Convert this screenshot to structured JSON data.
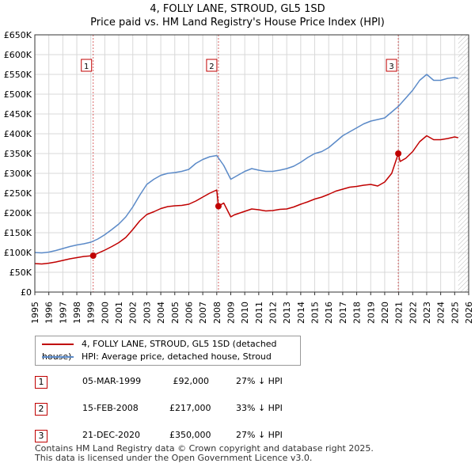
{
  "chart_data": {
    "type": "line",
    "title": "4, FOLLY LANE, STROUD, GL5 1SD",
    "subtitle": "Price paid vs. HM Land Registry's House Price Index (HPI)",
    "xlabel": "",
    "ylabel": "",
    "xlim": [
      1995,
      2026
    ],
    "ylim": [
      0,
      650000
    ],
    "y_ticks": [
      0,
      50000,
      100000,
      150000,
      200000,
      250000,
      300000,
      350000,
      400000,
      450000,
      500000,
      550000,
      600000,
      650000
    ],
    "y_tick_labels": [
      "£0",
      "£50K",
      "£100K",
      "£150K",
      "£200K",
      "£250K",
      "£300K",
      "£350K",
      "£400K",
      "£450K",
      "£500K",
      "£550K",
      "£600K",
      "£650K"
    ],
    "x_ticks": [
      1995,
      1996,
      1997,
      1998,
      1999,
      2000,
      2001,
      2002,
      2003,
      2004,
      2005,
      2006,
      2007,
      2008,
      2009,
      2010,
      2011,
      2012,
      2013,
      2014,
      2015,
      2016,
      2017,
      2018,
      2019,
      2020,
      2021,
      2022,
      2023,
      2024,
      2025,
      2026
    ],
    "grid": true,
    "forecast_start": 2025.25,
    "series": [
      {
        "name": "4, FOLLY LANE, STROUD, GL5 1SD (detached house)",
        "color": "#c00000",
        "x": [
          1995,
          1995.5,
          1996,
          1996.5,
          1997,
          1997.5,
          1998,
          1998.5,
          1999.17,
          1999.5,
          2000,
          2000.5,
          2001,
          2001.5,
          2002,
          2002.5,
          2003,
          2003.5,
          2004,
          2004.5,
          2005,
          2005.5,
          2006,
          2006.5,
          2007,
          2007.5,
          2008.0,
          2008.12,
          2008.5,
          2009,
          2009.25,
          2009.5,
          2010,
          2010.5,
          2011,
          2011.5,
          2012,
          2012.5,
          2013,
          2013.5,
          2014,
          2014.5,
          2015,
          2015.5,
          2016,
          2016.5,
          2017,
          2017.5,
          2018,
          2018.5,
          2019,
          2019.5,
          2020,
          2020.5,
          2020.97,
          2021.1,
          2021.5,
          2022,
          2022.5,
          2023,
          2023.5,
          2024,
          2024.5,
          2025,
          2025.25
        ],
        "values": [
          72000,
          71000,
          73000,
          76000,
          80000,
          84000,
          87000,
          90000,
          92000,
          98000,
          106000,
          115000,
          125000,
          138000,
          158000,
          180000,
          196000,
          203000,
          211000,
          216000,
          218000,
          219000,
          222000,
          230000,
          240000,
          250000,
          258000,
          217000,
          225000,
          190000,
          195000,
          198000,
          204000,
          210000,
          208000,
          205000,
          206000,
          209000,
          210000,
          215000,
          222000,
          228000,
          235000,
          240000,
          247000,
          255000,
          260000,
          265000,
          267000,
          270000,
          272000,
          268000,
          278000,
          300000,
          350000,
          330000,
          338000,
          355000,
          380000,
          395000,
          385000,
          385000,
          388000,
          392000,
          390000
        ]
      },
      {
        "name": "HPI: Average price, detached house, Stroud",
        "color": "#5b8ac8",
        "x": [
          1995,
          1995.5,
          1996,
          1996.5,
          1997,
          1997.5,
          1998,
          1998.5,
          1999,
          1999.5,
          2000,
          2000.5,
          2001,
          2001.5,
          2002,
          2002.5,
          2003,
          2003.5,
          2004,
          2004.5,
          2005,
          2005.5,
          2006,
          2006.5,
          2007,
          2007.5,
          2008,
          2008.5,
          2009,
          2009.25,
          2009.5,
          2010,
          2010.5,
          2011,
          2011.5,
          2012,
          2012.5,
          2013,
          2013.5,
          2014,
          2014.5,
          2015,
          2015.5,
          2016,
          2016.5,
          2017,
          2017.5,
          2018,
          2018.5,
          2019,
          2019.5,
          2020,
          2020.5,
          2021,
          2021.5,
          2022,
          2022.5,
          2023,
          2023.5,
          2024,
          2024.5,
          2025,
          2025.25
        ],
        "values": [
          100000,
          99000,
          101000,
          105000,
          110000,
          115000,
          119000,
          122000,
          126000,
          134000,
          145000,
          158000,
          172000,
          190000,
          215000,
          245000,
          272000,
          285000,
          295000,
          300000,
          302000,
          305000,
          310000,
          325000,
          335000,
          342000,
          345000,
          320000,
          285000,
          290000,
          295000,
          305000,
          312000,
          308000,
          305000,
          305000,
          308000,
          312000,
          318000,
          328000,
          340000,
          350000,
          355000,
          365000,
          380000,
          395000,
          405000,
          415000,
          425000,
          432000,
          436000,
          440000,
          455000,
          470000,
          490000,
          510000,
          535000,
          550000,
          535000,
          535000,
          540000,
          542000,
          540000
        ]
      }
    ],
    "sales": [
      {
        "num": "1",
        "x": 1999.17,
        "value": 92000
      },
      {
        "num": "2",
        "x": 2008.12,
        "value": 217000
      },
      {
        "num": "3",
        "x": 2020.97,
        "value": 350000
      }
    ]
  },
  "legend": {
    "property_label": "4, FOLLY LANE, STROUD, GL5 1SD (detached house)",
    "hpi_label": "HPI: Average price, detached house, Stroud"
  },
  "sales_table": [
    {
      "num": "1",
      "date": "05-MAR-1999",
      "price": "£92,000",
      "hpi": "27% ↓ HPI"
    },
    {
      "num": "2",
      "date": "15-FEB-2008",
      "price": "£217,000",
      "hpi": "33% ↓ HPI"
    },
    {
      "num": "3",
      "date": "21-DEC-2020",
      "price": "£350,000",
      "hpi": "27% ↓ HPI"
    }
  ],
  "footer": {
    "line1": "Contains HM Land Registry data © Crown copyright and database right 2025.",
    "line2": "This data is licensed under the Open Government Licence v3.0."
  },
  "colors": {
    "property": "#c00000",
    "hpi": "#5b8ac8",
    "grid": "#d8d8d8",
    "plot_bg": "#ffffff"
  }
}
